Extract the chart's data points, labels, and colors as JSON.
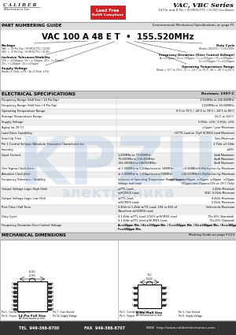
{
  "header_company_line1": "C A L I B E R",
  "header_company_line2": "Electronics Inc.",
  "header_badge_line1": "Lead Free",
  "header_badge_line2": "RoHS Compliant",
  "header_series": "VAC, VBC Series",
  "header_subtitle": "14 Pin and 8 Pin / HCMOS/TTL / VCXO Oscillator",
  "part_guide_title": "PART NUMBERING GUIDE",
  "part_env_text": "Environmental Mechanical Specifications on page F5",
  "part_number_str": "VAC 100 A 48 E T  •  155.520MHz",
  "label_package_title": "Package",
  "label_package_desc": "VAC = 14 Pin Dip / HCMOS-TTL / VCXO\nVBC =  8 Pin Dip / HCMOS-TTL / VCXO",
  "label_tol_title": "Inclusive Tolerance/Stability",
  "label_tol_desc": "100 = ±100ppm, 50= ± 50ppm, 25= +/-25ppm,\n20= +/-20ppm, 15=±15ppm",
  "label_supply_title": "Supply Voltage",
  "label_supply_desc": "Blank=5.0Vdc ±5% / A=3.3Vdc ±5%",
  "label_duty_title": "Duty Cycle",
  "label_duty_desc": "Blank=45/55% / T=40/60%",
  "label_freq_dev_title": "Frequency Deviation (Over Control Voltage)",
  "label_freq_dev_desc": "A=±50ppm / B=± 100ppm / C=±150ppm / D=±200ppm /\nE=±300ppm / F=±500ppm",
  "label_op_temp_title": "Operating Temperature Range",
  "label_op_temp_desc": "Blank = 0°C to 70°C, 27 = -20°C to 70°C, 68 = -40°C to 85°C",
  "elec_title": "ELECTRICAL SPECIFICATIONS",
  "elec_revision": "Revision: 1997-C",
  "elec_rows": [
    [
      "Frequency Range (Half Size / 14 Pin Dip)",
      "1.500MHz to 500.000MHz"
    ],
    [
      "Frequency Range (Half Size / 8 Pin Dip)",
      "1.000MHz to 60.000MHz"
    ],
    [
      "Operating Temperature Range",
      "0°C to 70°C / -20°C to 70°C / -40°C to 85°C"
    ],
    [
      "Storage Temperature Range",
      "-55°C to 125°C"
    ],
    [
      "Supply Voltage",
      "5.0Vdc, ±5%, 3.3Vdc, ±5%"
    ],
    [
      "Aging (at 25°C)",
      "±1ppm / year Maximum"
    ],
    [
      "Load Drive Capability",
      "HCTTL Load on 15pF HCMOS Load Maximum"
    ],
    [
      "Start Up Time",
      "5ms Maximum"
    ],
    [
      "Pin 1 Control Voltage (Absolute Transistor Characteristics)",
      "3.7Vdc ±0.5Vdc"
    ],
    [
      "Linearity",
      "±20%"
    ],
    [
      "Input Current",
      "1.000MHz to 70.000MHz:\n70.001MHz to 150.000MHz:\n150.001MHz to 200/500MHz:",
      "2mA Maximum\n4mA Maximum\n8mA Maximum"
    ],
    [
      "One Sigma Clock Jitter",
      "at 1.000MHz to 1.0Gbps/second, 500MHz:",
      "<0.5BBBHz/0.80pSec/sec by Maximum"
    ],
    [
      "Absolute Clock Jitter",
      "at 1.000MHz to 1.0Gbps/second 500MHz:",
      "<20.500MHz/1.00pSec/sec by Maximum"
    ],
    [
      "Frequency Tolerance / Stability",
      "Inclusive of Operating Temperature Range, Supply\nVoltage and Load:",
      "±100ppm, ±50ppm, ±25ppm, ±20ppm, ±15ppm\n(50ppm and 25ppm±15% at 70°C Only)"
    ],
    [
      "Output Voltage Logic High (Voh)",
      "w/TTL Load:\nw/HCMOS Load:",
      "2.4Vdc Minimum\nVDD -0.5Vdc Minimum"
    ],
    [
      "Output Voltage Logic Low (Vol)",
      "w/TTL Load:\nw/HCMOS Load:",
      "0.4Vdc Maximum\n0.5Vdc Maximum"
    ],
    [
      "Rise Time / Fall Time",
      "0.4Vdc to 1.4Vdc w/TTL Load; 20% to 80% of\nWaveform w/HCMOS Load:",
      "5nSeconds Maximum"
    ],
    [
      "Duty Cycle",
      "0.1.4Vdc w/TTL Load; 0.50% w/HCMOS Load\n0.1.4Vdc w/TTL Load w/HCMOS Load:",
      "70±10% (Standard)\n70±15% (Optional)"
    ],
    [
      "Frequency Deviation Over Control Voltage",
      "A=±50ppm Min. / B=±100ppm Min. / C=±150ppm Min. / D=±200ppm Min. / E=±300ppm Min. /\nF=±500ppm Min.",
      ""
    ]
  ],
  "mech_title": "MECHANICAL DIMENSIONS",
  "mech_marking": "Marking Guide on page F3-F4",
  "pin14_label": "14 Pin Full Size",
  "pin8_label": "8 Pin Half Size",
  "dim_note": "All Dimensions in mm.",
  "pin_labels_14": [
    "Pin 1:  Control Voltage (Vc)",
    "Pin 7:  Case Ground",
    "Pin 8:  Output",
    "Pin 14: Supply Voltage"
  ],
  "pin_labels_8": [
    "Pin 1:  Control Voltage (Vc)",
    "Pin 4:  Case Ground",
    "Pin 5:  Output",
    "Pin 8:  Supply Voltage"
  ],
  "footer_tel": "TEL  949-366-8700",
  "footer_fax": "FAX  949-366-8707",
  "footer_web": "WEB  http://www.caliberelectronics.com",
  "watermark_text": "KPZU",
  "watermark_sub": "электроника",
  "watermark_color": "#6699cc",
  "watermark_alpha": 0.22
}
